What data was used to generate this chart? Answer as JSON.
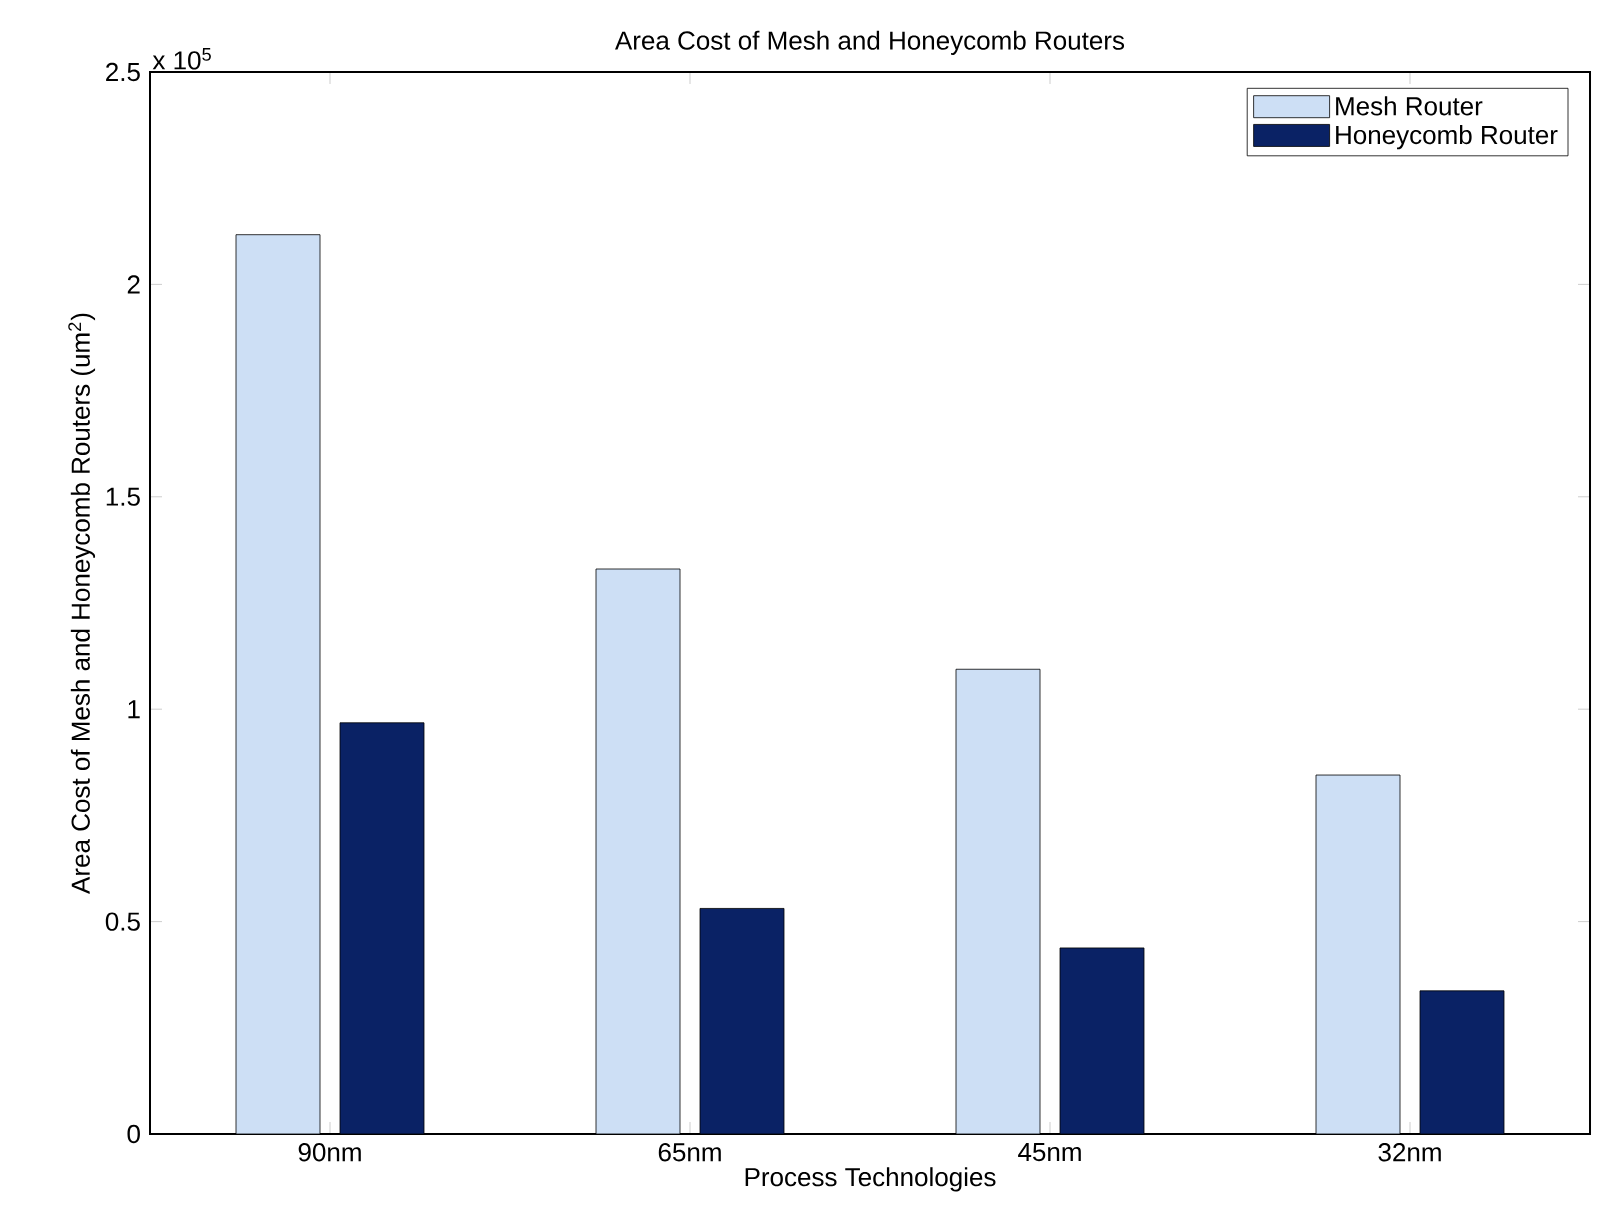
{
  "chart_data": {
    "type": "bar",
    "title": "Area Cost of Mesh and Honeycomb Routers",
    "xlabel": "Process Technologies",
    "ylabel": "Area Cost of Mesh and Honeycomb Routers (um$^{2}$)",
    "categories": [
      "90nm",
      "65nm",
      "45nm",
      "32nm"
    ],
    "series": [
      {
        "name": "Mesh Router",
        "color": "#cddff5",
        "values": [
          2.117,
          1.33,
          1.094,
          0.845
        ]
      },
      {
        "name": "Honeycomb Router",
        "color": "#0a2265",
        "values": [
          0.968,
          0.531,
          0.438,
          0.337
        ]
      }
    ],
    "ylim": [
      0,
      2.5
    ],
    "yticks": [
      0,
      0.5,
      1,
      1.5,
      2,
      2.5
    ],
    "annotations": [
      "x 10$^{5}$"
    ],
    "legend": "top right",
    "grid": false
  }
}
